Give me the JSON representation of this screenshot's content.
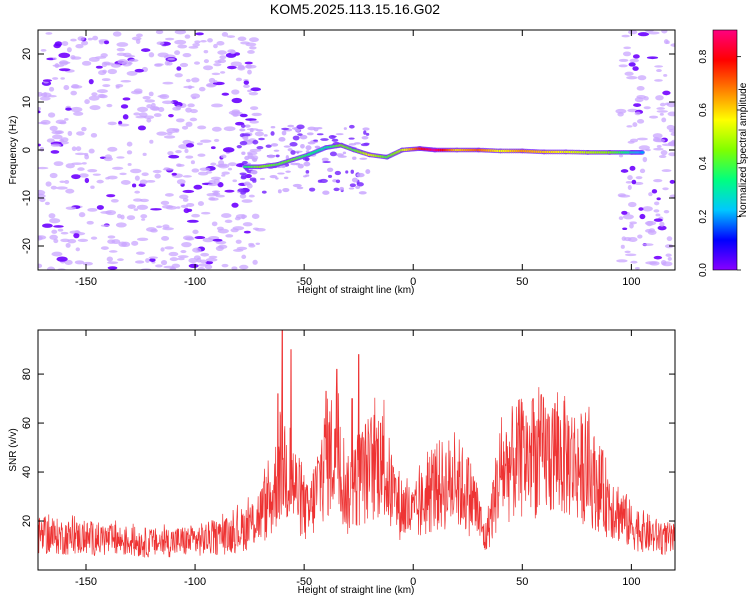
{
  "title": "KOM5.2025.113.15.16.G02",
  "chart_data": [
    {
      "type": "heatmap",
      "xlabel": "Height of straight line (km)",
      "ylabel": "Frequency (Hz)",
      "xlim": [
        -172,
        120
      ],
      "ylim": [
        -25,
        25
      ],
      "xticks": [
        -150,
        -100,
        -50,
        0,
        50,
        100
      ],
      "yticks": [
        -20,
        -10,
        0,
        10,
        20
      ],
      "colorbar": {
        "label": "Normalized spectral amplitude",
        "range": [
          0,
          0.9
        ],
        "ticks": [
          "0.0",
          "0.2",
          "0.4",
          "0.6",
          "0.8"
        ],
        "colormap": [
          "#8800ff",
          "#0000ff",
          "#00c8ff",
          "#00ff80",
          "#80ff00",
          "#ffff00",
          "#ff8000",
          "#ff0000",
          "#ff0080"
        ]
      },
      "ridge": [
        {
          "x": -77,
          "y": -3.5,
          "amp": 0.35
        },
        {
          "x": -70,
          "y": -3.5,
          "amp": 0.45
        },
        {
          "x": -62,
          "y": -3,
          "amp": 0.4
        },
        {
          "x": -55,
          "y": -2,
          "amp": 0.42
        },
        {
          "x": -48,
          "y": -1,
          "amp": 0.35
        },
        {
          "x": -40,
          "y": 0.5,
          "amp": 0.3
        },
        {
          "x": -33,
          "y": 1,
          "amp": 0.45
        },
        {
          "x": -27,
          "y": 0,
          "amp": 0.4
        },
        {
          "x": -20,
          "y": -1,
          "amp": 0.55
        },
        {
          "x": -12,
          "y": -1.5,
          "amp": 0.4
        },
        {
          "x": -5,
          "y": 0,
          "amp": 0.5
        },
        {
          "x": 3,
          "y": 0.3,
          "amp": 0.75
        },
        {
          "x": 10,
          "y": 0,
          "amp": 0.9
        },
        {
          "x": 20,
          "y": 0,
          "amp": 0.6
        },
        {
          "x": 30,
          "y": 0,
          "amp": 0.7
        },
        {
          "x": 40,
          "y": -0.2,
          "amp": 0.55
        },
        {
          "x": 50,
          "y": -0.2,
          "amp": 0.65
        },
        {
          "x": 60,
          "y": -0.4,
          "amp": 0.6
        },
        {
          "x": 70,
          "y": -0.4,
          "amp": 0.55
        },
        {
          "x": 80,
          "y": -0.5,
          "amp": 0.5
        },
        {
          "x": 90,
          "y": -0.5,
          "amp": 0.45
        },
        {
          "x": 100,
          "y": -0.5,
          "amp": 0.3
        },
        {
          "x": 105,
          "y": -0.5,
          "amp": 0.2
        }
      ],
      "noise_regions": [
        [
          -172,
          -70
        ],
        [
          95,
          120
        ]
      ]
    },
    {
      "type": "line",
      "xlabel": "Height of straight line (km)",
      "ylabel": "SNR (v/v)",
      "xlim": [
        -172,
        120
      ],
      "ylim": [
        0,
        98
      ],
      "xticks": [
        -150,
        -100,
        -50,
        0,
        50,
        100
      ],
      "yticks": [
        20,
        40,
        60,
        80
      ],
      "color": "#ee3333",
      "envelope": [
        {
          "x": -172,
          "y": 14
        },
        {
          "x": -150,
          "y": 13
        },
        {
          "x": -120,
          "y": 11
        },
        {
          "x": -100,
          "y": 12
        },
        {
          "x": -85,
          "y": 14
        },
        {
          "x": -75,
          "y": 18
        },
        {
          "x": -65,
          "y": 28
        },
        {
          "x": -60,
          "y": 45
        },
        {
          "x": -55,
          "y": 35
        },
        {
          "x": -48,
          "y": 22
        },
        {
          "x": -40,
          "y": 45
        },
        {
          "x": -35,
          "y": 50
        },
        {
          "x": -30,
          "y": 30
        },
        {
          "x": -25,
          "y": 38
        },
        {
          "x": -15,
          "y": 45
        },
        {
          "x": -8,
          "y": 28
        },
        {
          "x": 0,
          "y": 22
        },
        {
          "x": 10,
          "y": 34
        },
        {
          "x": 20,
          "y": 36
        },
        {
          "x": 28,
          "y": 28
        },
        {
          "x": 33,
          "y": 12
        },
        {
          "x": 40,
          "y": 40
        },
        {
          "x": 50,
          "y": 46
        },
        {
          "x": 60,
          "y": 47
        },
        {
          "x": 70,
          "y": 46
        },
        {
          "x": 80,
          "y": 40
        },
        {
          "x": 90,
          "y": 28
        },
        {
          "x": 100,
          "y": 18
        },
        {
          "x": 110,
          "y": 14
        },
        {
          "x": 120,
          "y": 12
        }
      ],
      "peaks": [
        {
          "x": -60,
          "y": 98
        },
        {
          "x": -56,
          "y": 90
        },
        {
          "x": -62,
          "y": 72
        },
        {
          "x": -35,
          "y": 82
        },
        {
          "x": -40,
          "y": 73
        },
        {
          "x": -25,
          "y": 88
        },
        {
          "x": -28,
          "y": 70
        },
        {
          "x": -15,
          "y": 60
        },
        {
          "x": 55,
          "y": 70
        },
        {
          "x": 65,
          "y": 68
        }
      ]
    }
  ]
}
